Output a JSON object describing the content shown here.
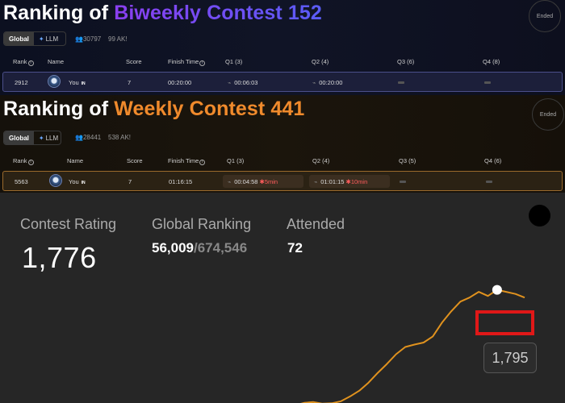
{
  "biweekly": {
    "title_prefix": "Ranking of ",
    "title_accent": "Biweekly Contest 152",
    "status": "Ended",
    "toggle": {
      "global": "Global",
      "llm": "LLM"
    },
    "participants": "30797",
    "ak": "99 AK!",
    "headers": {
      "rank": "Rank",
      "name": "Name",
      "score": "Score",
      "finish": "Finish Time",
      "q1": "Q1 (3)",
      "q2": "Q2 (4)",
      "q3": "Q3 (6)",
      "q4": "Q4 (8)"
    },
    "row": {
      "rank": "2912",
      "name": "You",
      "badge": "IN",
      "score": "7",
      "finish": "00:20:00",
      "q1": "00:06:03",
      "q2": "00:20:00"
    }
  },
  "weekly": {
    "title_prefix": "Ranking of ",
    "title_accent": "Weekly Contest 441",
    "status": "Ended",
    "toggle": {
      "global": "Global",
      "llm": "LLM"
    },
    "participants": "28441",
    "ak": "538 AK!",
    "headers": {
      "rank": "Rank",
      "name": "Name",
      "score": "Score",
      "finish": "Finish Time",
      "q1": "Q1 (3)",
      "q2": "Q2 (4)",
      "q3": "Q3 (5)",
      "q4": "Q4 (6)"
    },
    "row": {
      "rank": "5563",
      "name": "You",
      "badge": "IN",
      "score": "7",
      "finish": "01:16:15",
      "q1": "00:04:58",
      "q1_penalty": "5min",
      "q2": "01:01:15",
      "q2_penalty": "10min"
    }
  },
  "rating": {
    "contest_rating_label": "Contest Rating",
    "contest_rating": "1,776",
    "global_ranking_label": "Global Ranking",
    "global_rank": "56,009",
    "global_total": "/674,546",
    "attended_label": "Attended",
    "attended": "72",
    "tooltip": "1,795"
  },
  "colors": {
    "line": "#e0921e",
    "highlight": "#e01818",
    "orange": "#f08a2c",
    "purple": "#7d4cf3"
  },
  "chart_data": {
    "type": "line",
    "series": [
      {
        "values": [
          1505,
          1503,
          1499,
          1497,
          1495,
          1493,
          1491,
          1487,
          1484,
          1482,
          1480,
          1477,
          1475,
          1481,
          1488,
          1508,
          1500,
          1493,
          1488,
          1484,
          1480,
          1478,
          1482,
          1484,
          1490,
          1494,
          1498,
          1503,
          1510,
          1516,
          1518,
          1514,
          1515,
          1520,
          1532,
          1546,
          1566,
          1590,
          1612,
          1636,
          1654,
          1660,
          1665,
          1680,
          1714,
          1742,
          1766,
          1776,
          1790,
          1780,
          1795,
          1790,
          1785,
          1776
        ]
      }
    ],
    "point_label": "1,795"
  }
}
